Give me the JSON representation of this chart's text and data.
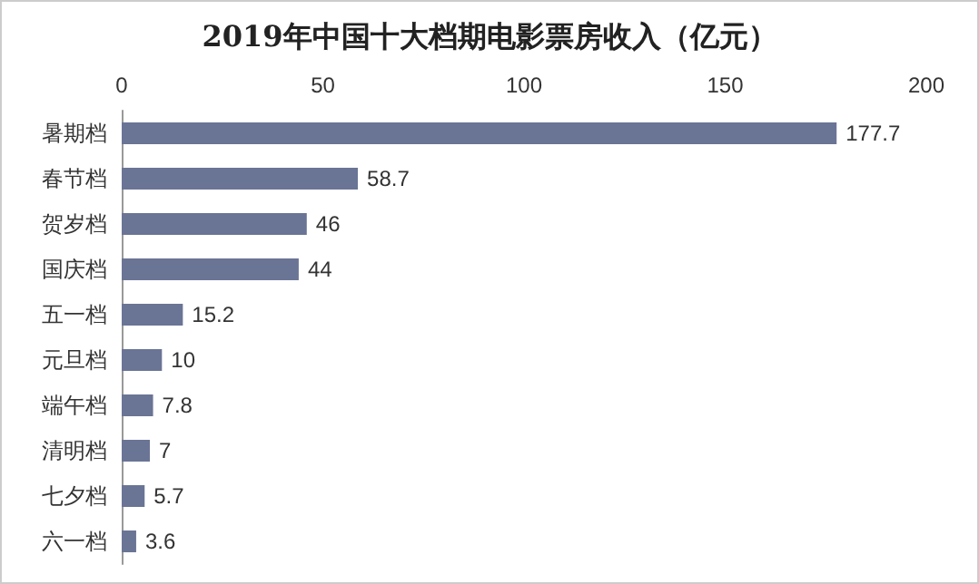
{
  "chart_data": {
    "type": "bar",
    "orientation": "horizontal",
    "title": "2019年中国十大档期电影票房收入（亿元）",
    "categories": [
      "暑期档",
      "春节档",
      "贺岁档",
      "国庆档",
      "五一档",
      "元旦档",
      "端午档",
      "清明档",
      "七夕档",
      "六一档"
    ],
    "values": [
      177.7,
      58.7,
      46,
      44,
      15.2,
      10,
      7.8,
      7,
      5.7,
      3.6
    ],
    "color": "#6a7495",
    "xlim": [
      0,
      200
    ],
    "xticks": [
      0,
      50,
      100,
      150,
      200
    ],
    "data_labels": true
  }
}
